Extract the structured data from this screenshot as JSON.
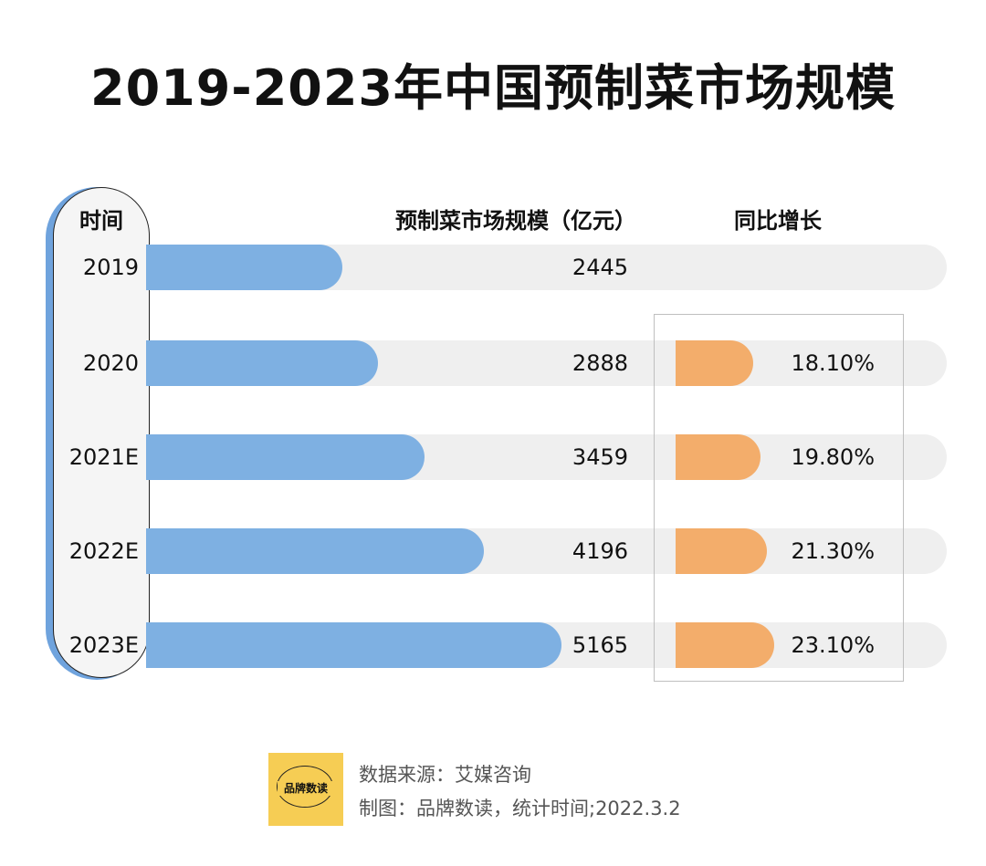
{
  "title": "2019-2023年中国预制菜市场规模",
  "headers": {
    "time": "时间",
    "size": "预制菜市场规模（亿元）",
    "growth": "同比增长"
  },
  "chart_data": {
    "type": "bar",
    "orientation": "horizontal",
    "categories": [
      "2019",
      "2020",
      "2021E",
      "2022E",
      "2023E"
    ],
    "series": [
      {
        "name": "预制菜市场规模（亿元）",
        "values": [
          2445,
          2888,
          3459,
          4196,
          5165
        ],
        "color": "#7eb0e2"
      },
      {
        "name": "同比增长",
        "values": [
          null,
          18.1,
          19.8,
          21.3,
          23.1
        ],
        "color": "#f3ad6b"
      }
    ],
    "value_labels": [
      "2445",
      "2888",
      "3459",
      "4196",
      "5165"
    ],
    "growth_labels": [
      "",
      "18.10%",
      "19.80%",
      "21.30%",
      "23.10%"
    ]
  },
  "footer": {
    "logo_text": "品牌数读",
    "source": "数据来源：艾媒咨询",
    "credit": "制图：品牌数读，统计时间;2022.3.2"
  },
  "colors": {
    "size_bar": "#7eb0e2",
    "growth_bar": "#f3ad6b",
    "track": "#efefef",
    "year_accent": "#6fa3dd",
    "logo_bg": "#f6cd54"
  }
}
